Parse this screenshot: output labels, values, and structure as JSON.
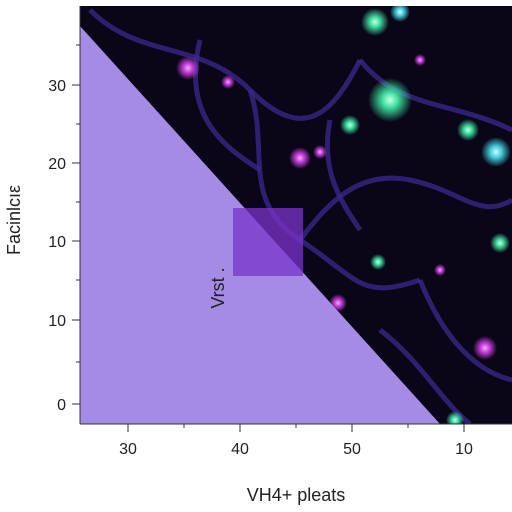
{
  "chart_data": {
    "type": "heatmap",
    "xlabel": "VH4+ pleats",
    "ylabel": "Facinlcıε",
    "annotation": "Vrst .",
    "x_ticks": [
      "30",
      "40",
      "50",
      "10"
    ],
    "y_ticks": [
      "30",
      "20",
      "10",
      "10",
      "0"
    ],
    "overlay": {
      "fill_color": "#a58be6",
      "region": "lower-left triangle",
      "highlight_color": "#7a33c9"
    },
    "image_colors": {
      "background": "#0a0618",
      "network": "#3b2a8f",
      "magenta": "#c23bd8",
      "green": "#3fe0a0",
      "cyan": "#40c8d8"
    }
  }
}
